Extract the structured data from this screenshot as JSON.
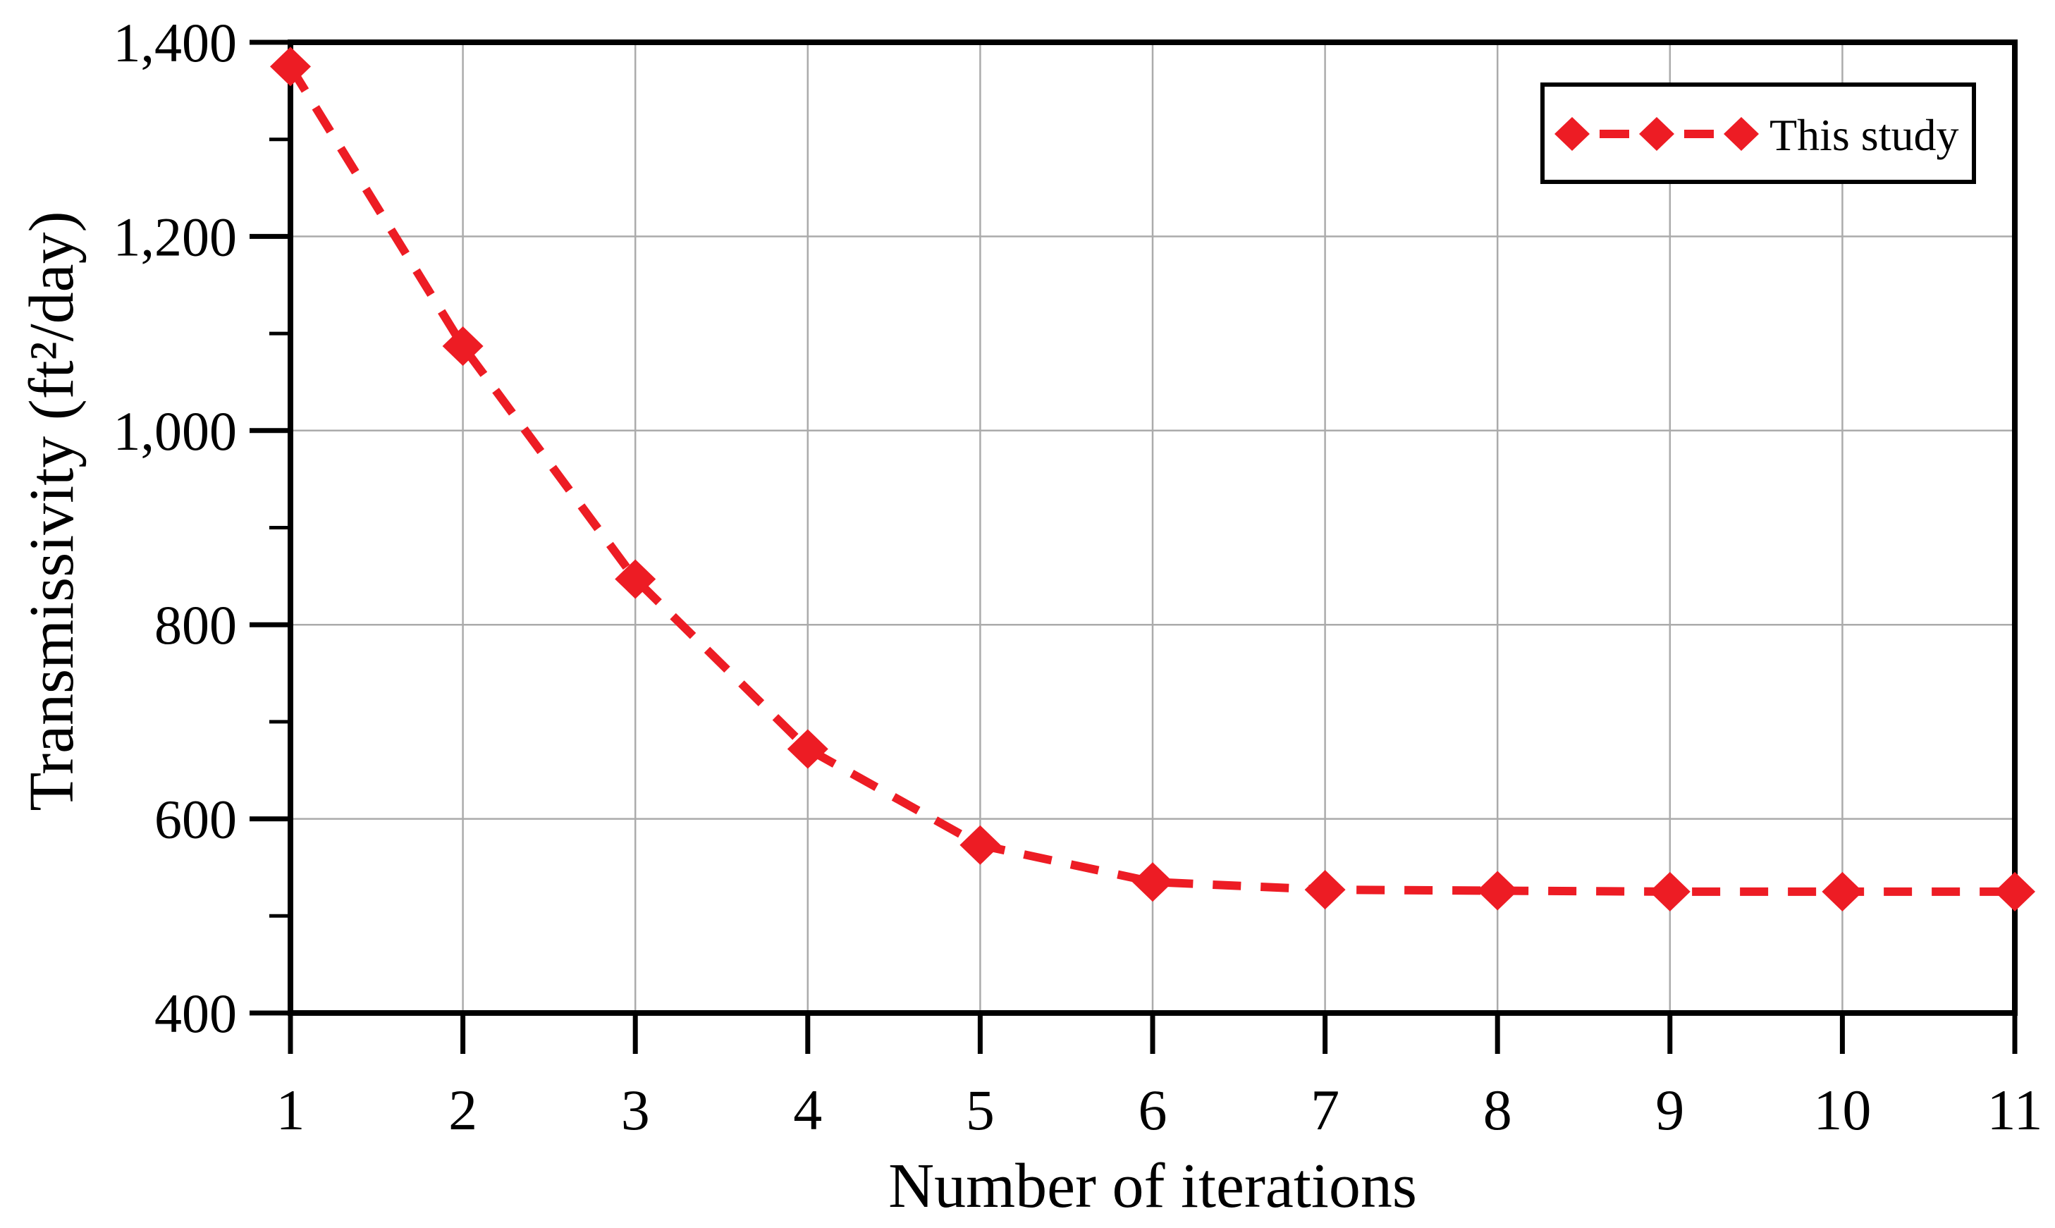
{
  "chart_data": {
    "type": "line",
    "title": "",
    "xlabel": "Number of iterations",
    "ylabel": "Transmissivity (ft²/day)",
    "xlim": [
      1,
      11
    ],
    "ylim": [
      400,
      1400
    ],
    "x_ticks": [
      1,
      2,
      3,
      4,
      5,
      6,
      7,
      8,
      9,
      10,
      11
    ],
    "x_tick_labels": [
      "1",
      "2",
      "3",
      "4",
      "5",
      "6",
      "7",
      "8",
      "9",
      "10",
      "11"
    ],
    "y_ticks": [
      400,
      600,
      800,
      1000,
      1200,
      1400
    ],
    "y_tick_labels": [
      "400",
      "600",
      "800",
      "1,000",
      "1,200",
      "1,400"
    ],
    "y_minor_ticks": [
      500,
      700,
      900,
      1100,
      1300
    ],
    "grid": {
      "vertical": true,
      "horizontal": true,
      "color": "#ABABAB"
    },
    "x": [
      1,
      2,
      3,
      4,
      5,
      6,
      7,
      8,
      9,
      10,
      11
    ],
    "series": [
      {
        "name": "This study",
        "values": [
          1375,
          1087,
          847,
          672,
          573,
          535,
          527,
          526,
          525,
          525,
          525
        ],
        "color": "#ED1C24",
        "line_style": "dashed",
        "marker": "diamond"
      }
    ],
    "legend": {
      "position": "top-right",
      "border": true
    },
    "axis_color": "#000000"
  }
}
